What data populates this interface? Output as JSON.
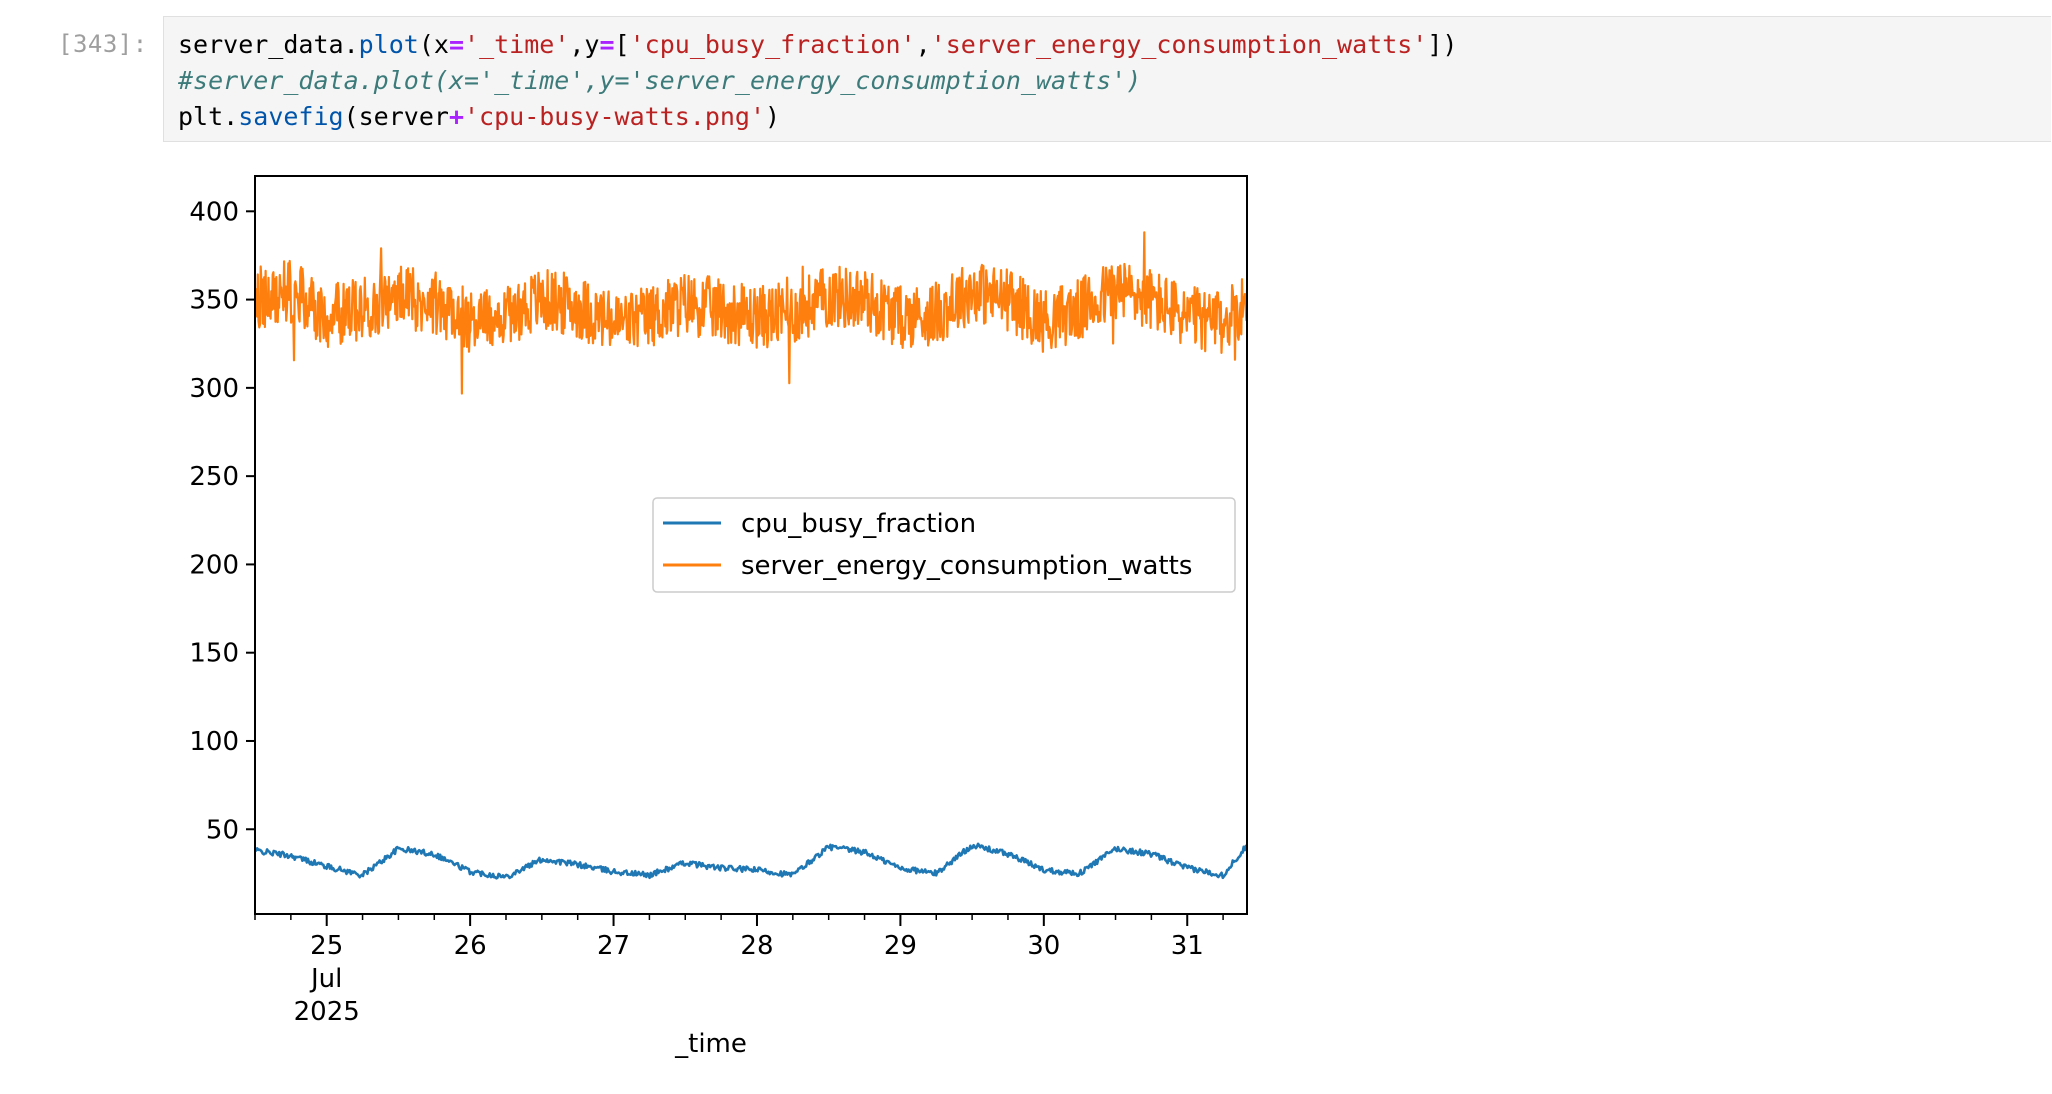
{
  "cell": {
    "prompt": "[343]:",
    "lines": [
      [
        {
          "t": "server_data.",
          "c": ""
        },
        {
          "t": "plot",
          "c": "fn"
        },
        {
          "t": "(x",
          "c": ""
        },
        {
          "t": "=",
          "c": "op"
        },
        {
          "t": "'_time'",
          "c": "str"
        },
        {
          "t": ",y",
          "c": ""
        },
        {
          "t": "=",
          "c": "op"
        },
        {
          "t": "[",
          "c": ""
        },
        {
          "t": "'cpu_busy_fraction'",
          "c": "str"
        },
        {
          "t": ",",
          "c": ""
        },
        {
          "t": "'server_energy_consumption_watts'",
          "c": "str"
        },
        {
          "t": "])",
          "c": ""
        }
      ],
      [
        {
          "t": "#server_data.plot(x='_time',y='server_energy_consumption_watts')",
          "c": "comment"
        }
      ],
      [
        {
          "t": "plt.",
          "c": ""
        },
        {
          "t": "savefig",
          "c": "fn"
        },
        {
          "t": "(server",
          "c": ""
        },
        {
          "t": "+",
          "c": "op"
        },
        {
          "t": "'cpu-busy-watts.png'",
          "c": "str"
        },
        {
          "t": ")",
          "c": ""
        }
      ]
    ]
  },
  "colors": {
    "cpu_line": "#1f77b4",
    "watts_line": "#ff7f0e",
    "prompt": "#9e9e9e",
    "cell_background": "#f5f5f5"
  },
  "chart_data": {
    "type": "line",
    "title": "",
    "xlabel": "_time",
    "ylabel": "",
    "x_range": [
      "2025-07-24 12:00",
      "2025-07-31 10:00"
    ],
    "ylim": [
      2,
      420
    ],
    "yticks": [
      50,
      100,
      150,
      200,
      250,
      300,
      350,
      400
    ],
    "x_major_ticks": [
      {
        "date": "2025-07-25",
        "label": "25\nJul\n2025"
      },
      {
        "date": "2025-07-26",
        "label": "26"
      },
      {
        "date": "2025-07-27",
        "label": "27"
      },
      {
        "date": "2025-07-28",
        "label": "28"
      },
      {
        "date": "2025-07-29",
        "label": "29"
      },
      {
        "date": "2025-07-30",
        "label": "30"
      },
      {
        "date": "2025-07-31",
        "label": "31"
      }
    ],
    "legend_position": "center-right",
    "grid": false,
    "series": [
      {
        "name": "cpu_busy_fraction",
        "x": [
          "2025-07-24 12:00",
          "2025-07-24 18:00",
          "2025-07-25 00:00",
          "2025-07-25 06:00",
          "2025-07-25 12:00",
          "2025-07-25 18:00",
          "2025-07-26 00:00",
          "2025-07-26 06:00",
          "2025-07-26 12:00",
          "2025-07-26 18:00",
          "2025-07-27 00:00",
          "2025-07-27 06:00",
          "2025-07-27 12:00",
          "2025-07-27 18:00",
          "2025-07-28 00:00",
          "2025-07-28 06:00",
          "2025-07-28 12:00",
          "2025-07-28 18:00",
          "2025-07-29 00:00",
          "2025-07-29 06:00",
          "2025-07-29 12:00",
          "2025-07-29 18:00",
          "2025-07-30 00:00",
          "2025-07-30 06:00",
          "2025-07-30 12:00",
          "2025-07-30 18:00",
          "2025-07-31 00:00",
          "2025-07-31 06:00",
          "2025-07-31 10:00"
        ],
        "y": [
          38,
          35,
          29,
          24,
          39,
          36,
          26,
          23,
          33,
          30,
          26,
          24,
          31,
          28,
          27,
          24,
          40,
          37,
          28,
          25,
          41,
          36,
          27,
          25,
          39,
          36,
          28,
          24,
          41
        ]
      },
      {
        "name": "server_energy_consumption_watts",
        "x": [
          "2025-07-24 12:00",
          "2025-07-24 18:00",
          "2025-07-25 00:00",
          "2025-07-25 06:00",
          "2025-07-25 12:00",
          "2025-07-25 18:00",
          "2025-07-26 00:00",
          "2025-07-26 06:00",
          "2025-07-26 12:00",
          "2025-07-26 18:00",
          "2025-07-27 00:00",
          "2025-07-27 06:00",
          "2025-07-27 12:00",
          "2025-07-27 18:00",
          "2025-07-28 00:00",
          "2025-07-28 06:00",
          "2025-07-28 12:00",
          "2025-07-28 18:00",
          "2025-07-29 00:00",
          "2025-07-29 06:00",
          "2025-07-29 12:00",
          "2025-07-29 18:00",
          "2025-07-30 00:00",
          "2025-07-30 06:00",
          "2025-07-30 12:00",
          "2025-07-30 18:00",
          "2025-07-31 00:00",
          "2025-07-31 06:00",
          "2025-07-31 10:00"
        ],
        "y": [
          350,
          355,
          340,
          345,
          352,
          348,
          338,
          342,
          350,
          346,
          336,
          340,
          348,
          344,
          340,
          342,
          352,
          350,
          340,
          342,
          355,
          350,
          338,
          344,
          356,
          350,
          340,
          336,
          350
        ]
      }
    ]
  }
}
